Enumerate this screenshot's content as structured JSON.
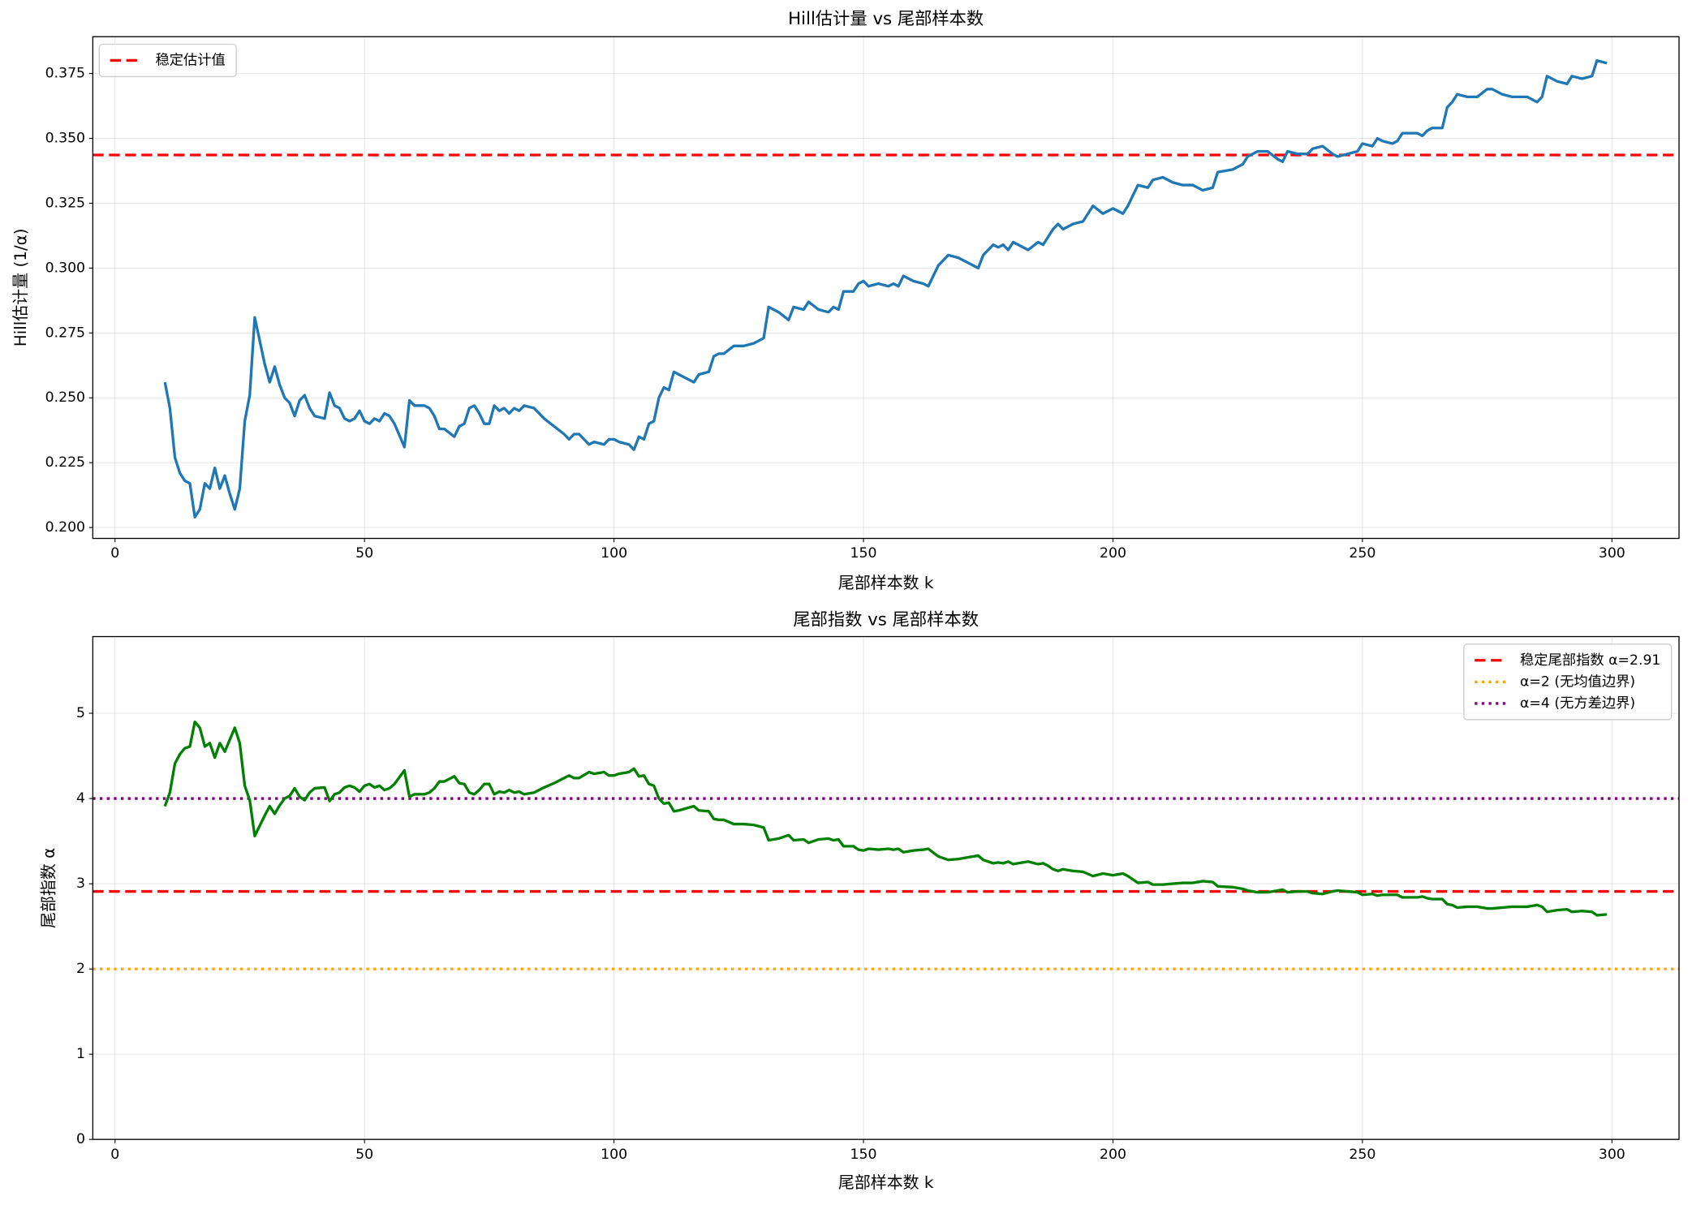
{
  "chart_data": [
    {
      "type": "line",
      "title": "Hill估计量 vs 尾部样本数",
      "xlabel": "尾部样本数 k",
      "ylabel": "Hill估计量 (1/α)",
      "x": [
        10,
        11,
        12,
        13,
        14,
        15,
        16,
        17,
        18,
        19,
        20,
        21,
        22,
        23,
        24,
        25,
        26,
        27,
        28,
        29,
        30,
        31,
        32,
        33,
        34,
        35,
        36,
        37,
        38,
        39,
        40,
        42,
        43,
        44,
        45,
        46,
        47,
        48,
        49,
        50,
        51,
        52,
        53,
        54,
        55,
        56,
        58,
        59,
        60,
        62,
        63,
        64,
        65,
        66,
        68,
        69,
        70,
        71,
        72,
        73,
        74,
        75,
        76,
        77,
        78,
        79,
        80,
        81,
        82,
        84,
        86,
        88,
        90,
        91,
        92,
        93,
        95,
        96,
        98,
        99,
        100,
        101,
        103,
        104,
        105,
        106,
        107,
        108,
        109,
        110,
        111,
        112,
        113,
        116,
        117,
        119,
        120,
        121,
        122,
        124,
        126,
        128,
        130,
        131,
        133,
        135,
        136,
        138,
        139,
        141,
        143,
        144,
        145,
        146,
        148,
        149,
        150,
        151,
        153,
        155,
        156,
        157,
        158,
        160,
        162,
        163,
        165,
        167,
        169,
        171,
        173,
        174,
        176,
        177,
        178,
        179,
        180,
        183,
        185,
        186,
        187,
        188,
        189,
        190,
        192,
        194,
        196,
        198,
        200,
        202,
        203,
        205,
        207,
        208,
        210,
        212,
        214,
        216,
        218,
        220,
        221,
        224,
        226,
        227,
        229,
        231,
        233,
        234,
        235,
        237,
        239,
        240,
        242,
        244,
        245,
        247,
        249,
        250,
        252,
        253,
        254,
        256,
        257,
        258,
        261,
        262,
        263,
        264,
        266,
        267,
        268,
        269,
        271,
        273,
        275,
        276,
        278,
        280,
        283,
        285,
        286,
        287,
        289,
        291,
        292,
        294,
        296,
        297,
        299
      ],
      "series": [
        {
          "color": "#1f77b4",
          "values": [
            0.256,
            0.246,
            0.227,
            0.221,
            0.218,
            0.217,
            0.204,
            0.207,
            0.217,
            0.215,
            0.223,
            0.215,
            0.22,
            0.213,
            0.207,
            0.215,
            0.241,
            0.251,
            0.281,
            0.272,
            0.263,
            0.256,
            0.262,
            0.255,
            0.25,
            0.248,
            0.243,
            0.249,
            0.251,
            0.246,
            0.243,
            0.242,
            0.252,
            0.247,
            0.246,
            0.242,
            0.241,
            0.242,
            0.245,
            0.241,
            0.24,
            0.242,
            0.241,
            0.244,
            0.243,
            0.24,
            0.231,
            0.249,
            0.247,
            0.247,
            0.246,
            0.243,
            0.238,
            0.238,
            0.235,
            0.239,
            0.24,
            0.246,
            0.247,
            0.244,
            0.24,
            0.24,
            0.247,
            0.245,
            0.246,
            0.244,
            0.246,
            0.245,
            0.247,
            0.246,
            0.242,
            0.239,
            0.236,
            0.234,
            0.236,
            0.236,
            0.232,
            0.233,
            0.232,
            0.234,
            0.234,
            0.233,
            0.232,
            0.23,
            0.235,
            0.234,
            0.24,
            0.241,
            0.25,
            0.254,
            0.253,
            0.26,
            0.259,
            0.256,
            0.259,
            0.26,
            0.266,
            0.267,
            0.267,
            0.27,
            0.27,
            0.271,
            0.273,
            0.285,
            0.283,
            0.28,
            0.285,
            0.284,
            0.287,
            0.284,
            0.283,
            0.285,
            0.284,
            0.291,
            0.291,
            0.294,
            0.295,
            0.293,
            0.294,
            0.293,
            0.294,
            0.293,
            0.297,
            0.295,
            0.294,
            0.293,
            0.301,
            0.305,
            0.304,
            0.302,
            0.3,
            0.305,
            0.309,
            0.308,
            0.309,
            0.307,
            0.31,
            0.307,
            0.31,
            0.309,
            0.312,
            0.315,
            0.317,
            0.315,
            0.317,
            0.318,
            0.324,
            0.321,
            0.323,
            0.321,
            0.324,
            0.332,
            0.331,
            0.334,
            0.335,
            0.333,
            0.332,
            0.332,
            0.33,
            0.331,
            0.337,
            0.338,
            0.34,
            0.343,
            0.345,
            0.345,
            0.342,
            0.341,
            0.345,
            0.344,
            0.344,
            0.346,
            0.347,
            0.344,
            0.343,
            0.344,
            0.345,
            0.348,
            0.347,
            0.35,
            0.349,
            0.348,
            0.349,
            0.352,
            0.352,
            0.351,
            0.353,
            0.354,
            0.354,
            0.362,
            0.364,
            0.367,
            0.366,
            0.366,
            0.369,
            0.369,
            0.367,
            0.366,
            0.366,
            0.364,
            0.366,
            0.374,
            0.372,
            0.371,
            0.374,
            0.373,
            0.374,
            0.38,
            0.379
          ]
        }
      ],
      "hlines": [
        {
          "name": "稳定估计值",
          "value": 0.3436,
          "color": "#ff0000",
          "style": "dashed"
        }
      ],
      "xlim": [
        -4.45,
        313.45
      ],
      "ylim": [
        0.1958,
        0.3892
      ],
      "xticks": [
        0,
        50,
        100,
        150,
        200,
        250,
        300
      ],
      "yticks": [
        {
          "value": 0.2,
          "label": "0.200"
        },
        0.225,
        {
          "value": 0.25,
          "label": "0.250"
        },
        0.275,
        {
          "value": 0.3,
          "label": "0.300"
        },
        0.325,
        {
          "value": 0.35,
          "label": "0.350"
        },
        0.375
      ],
      "grid": true,
      "legend": "upper left"
    },
    {
      "type": "line",
      "title": "尾部指数 vs 尾部样本数",
      "xlabel": "尾部样本数 k",
      "ylabel": "尾部指数 α",
      "x": [
        10,
        11,
        12,
        13,
        14,
        15,
        16,
        17,
        18,
        19,
        20,
        21,
        22,
        23,
        24,
        25,
        26,
        27,
        28,
        29,
        30,
        31,
        32,
        33,
        34,
        35,
        36,
        37,
        38,
        39,
        40,
        42,
        43,
        44,
        45,
        46,
        47,
        48,
        49,
        50,
        51,
        52,
        53,
        54,
        55,
        56,
        58,
        59,
        60,
        62,
        63,
        64,
        65,
        66,
        68,
        69,
        70,
        71,
        72,
        73,
        74,
        75,
        76,
        77,
        78,
        79,
        80,
        81,
        82,
        84,
        86,
        88,
        90,
        91,
        92,
        93,
        95,
        96,
        98,
        99,
        100,
        101,
        103,
        104,
        105,
        106,
        107,
        108,
        109,
        110,
        111,
        112,
        113,
        116,
        117,
        119,
        120,
        121,
        122,
        124,
        126,
        128,
        130,
        131,
        133,
        135,
        136,
        138,
        139,
        141,
        143,
        144,
        145,
        146,
        148,
        149,
        150,
        151,
        153,
        155,
        156,
        157,
        158,
        160,
        162,
        163,
        165,
        167,
        169,
        171,
        173,
        174,
        176,
        177,
        178,
        179,
        180,
        183,
        185,
        186,
        187,
        188,
        189,
        190,
        192,
        194,
        196,
        198,
        200,
        202,
        203,
        205,
        207,
        208,
        210,
        212,
        214,
        216,
        218,
        220,
        221,
        224,
        226,
        227,
        229,
        231,
        233,
        234,
        235,
        237,
        239,
        240,
        242,
        244,
        245,
        247,
        249,
        250,
        252,
        253,
        254,
        256,
        257,
        258,
        261,
        262,
        263,
        264,
        266,
        267,
        268,
        269,
        271,
        273,
        275,
        276,
        278,
        280,
        283,
        285,
        286,
        287,
        289,
        291,
        292,
        294,
        296,
        297,
        299
      ],
      "series": [
        {
          "color": "#008000",
          "values": [
            3.91,
            4.07,
            4.41,
            4.52,
            4.59,
            4.61,
            4.9,
            4.83,
            4.61,
            4.65,
            4.48,
            4.65,
            4.55,
            4.69,
            4.83,
            4.65,
            4.15,
            3.98,
            3.56,
            3.68,
            3.8,
            3.91,
            3.82,
            3.92,
            4.0,
            4.03,
            4.12,
            4.02,
            3.98,
            4.07,
            4.12,
            4.13,
            3.97,
            4.05,
            4.07,
            4.13,
            4.15,
            4.13,
            4.08,
            4.15,
            4.17,
            4.13,
            4.15,
            4.1,
            4.12,
            4.17,
            4.33,
            4.02,
            4.05,
            4.05,
            4.07,
            4.12,
            4.2,
            4.2,
            4.26,
            4.18,
            4.17,
            4.07,
            4.05,
            4.1,
            4.17,
            4.17,
            4.05,
            4.08,
            4.07,
            4.1,
            4.07,
            4.08,
            4.05,
            4.07,
            4.13,
            4.18,
            4.24,
            4.27,
            4.24,
            4.24,
            4.31,
            4.29,
            4.31,
            4.27,
            4.27,
            4.29,
            4.31,
            4.35,
            4.26,
            4.27,
            4.17,
            4.15,
            4.0,
            3.94,
            3.95,
            3.85,
            3.86,
            3.91,
            3.86,
            3.85,
            3.76,
            3.75,
            3.75,
            3.7,
            3.7,
            3.69,
            3.66,
            3.51,
            3.53,
            3.57,
            3.51,
            3.52,
            3.48,
            3.52,
            3.53,
            3.51,
            3.52,
            3.44,
            3.44,
            3.4,
            3.39,
            3.41,
            3.4,
            3.41,
            3.4,
            3.41,
            3.37,
            3.39,
            3.4,
            3.41,
            3.32,
            3.28,
            3.29,
            3.31,
            3.33,
            3.28,
            3.24,
            3.25,
            3.24,
            3.26,
            3.23,
            3.26,
            3.23,
            3.24,
            3.21,
            3.17,
            3.15,
            3.17,
            3.15,
            3.14,
            3.09,
            3.12,
            3.1,
            3.12,
            3.09,
            3.01,
            3.02,
            2.99,
            2.99,
            3.0,
            3.01,
            3.01,
            3.03,
            3.02,
            2.97,
            2.96,
            2.94,
            2.92,
            2.9,
            2.9,
            2.92,
            2.93,
            2.9,
            2.91,
            2.91,
            2.89,
            2.88,
            2.91,
            2.92,
            2.91,
            2.9,
            2.87,
            2.88,
            2.86,
            2.87,
            2.87,
            2.87,
            2.84,
            2.84,
            2.85,
            2.83,
            2.82,
            2.82,
            2.76,
            2.75,
            2.72,
            2.73,
            2.73,
            2.71,
            2.71,
            2.72,
            2.73,
            2.73,
            2.75,
            2.73,
            2.67,
            2.69,
            2.7,
            2.67,
            2.68,
            2.67,
            2.63,
            2.64
          ]
        }
      ],
      "hlines": [
        {
          "name": "稳定尾部指数 α=2.91",
          "value": 2.91,
          "color": "#ff0000",
          "style": "dashed"
        },
        {
          "name": "α=2 (无均值边界)",
          "value": 2,
          "color": "#ffa500",
          "style": "dotted"
        },
        {
          "name": "α=4 (无方差边界)",
          "value": 4,
          "color": "#800080",
          "style": "dotted"
        }
      ],
      "xlim": [
        -4.45,
        313.45
      ],
      "ylim": [
        0,
        5.9
      ],
      "xticks": [
        0,
        50,
        100,
        150,
        200,
        250,
        300
      ],
      "yticks": [
        0,
        1,
        2,
        3,
        4,
        5
      ],
      "grid": true,
      "legend": "upper right"
    }
  ]
}
